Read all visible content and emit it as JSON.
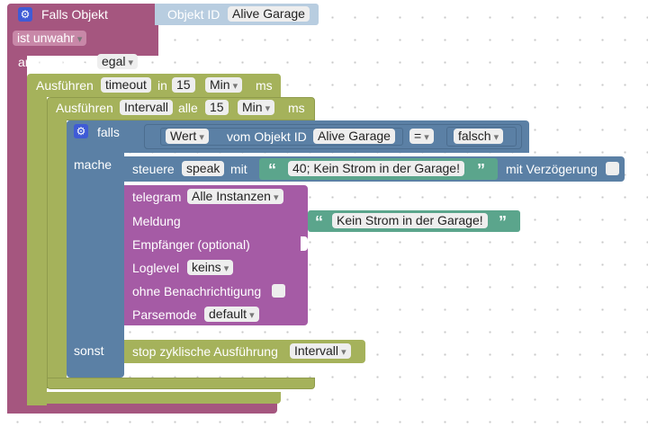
{
  "falls_objekt": {
    "title": "Falls Objekt",
    "objekt_id_label": "Objekt ID",
    "objekt_id_value": "Alive Garage",
    "ist_label": "ist unwahr",
    "anerkannt_label": "anerkannt ist",
    "anerkannt_value": "egal"
  },
  "timeout": {
    "prefix": "Ausführen",
    "name": "timeout",
    "in_label": "in",
    "value": "15",
    "unit": "Min",
    "ms_label": "ms"
  },
  "interval": {
    "prefix": "Ausführen",
    "name": "Intervall",
    "alle_label": "alle",
    "value": "15",
    "unit": "Min",
    "ms_label": "ms"
  },
  "if_block": {
    "falls_label": "falls",
    "mache_label": "mache",
    "sonst_label": "sonst",
    "wert_label": "Wert",
    "vom_objekt_label": "vom Objekt ID",
    "objekt_value": "Alive Garage",
    "operator": "=",
    "compare_value": "falsch"
  },
  "steuere": {
    "label": "steuere",
    "target": "speak",
    "mit_label": "mit",
    "text": "40; Kein Strom in der Garage!",
    "delay_label": "mit Verzögerung"
  },
  "telegram": {
    "label": "telegram",
    "instance": "Alle Instanzen",
    "meldung_label": "Meldung",
    "meldung_text": "Kein Strom in der Garage!",
    "empfaenger_label": "Empfänger (optional)",
    "loglevel_label": "Loglevel",
    "loglevel_value": "keins",
    "ohne_label": "ohne Benachrichtigung",
    "parsemode_label": "Parsemode",
    "parsemode_value": "default"
  },
  "stop": {
    "label": "stop zyklische Ausführung",
    "target": "Intervall"
  },
  "colors": {
    "event": "#a5567f",
    "timer": "#a5b25b",
    "logic": "#5b80a5",
    "telegram": "#a55ba5",
    "text": "#5ba58c",
    "object_field": "#b8cde0"
  }
}
